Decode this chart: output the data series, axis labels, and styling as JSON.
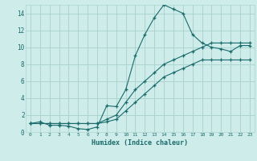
{
  "title": "",
  "xlabel": "Humidex (Indice chaleur)",
  "ylabel": "",
  "bg_color": "#ceecea",
  "grid_color": "#aed4d0",
  "line_color": "#1a6b6b",
  "xlim": [
    -0.5,
    23.5
  ],
  "ylim": [
    0,
    15
  ],
  "xticks": [
    0,
    1,
    2,
    3,
    4,
    5,
    6,
    7,
    8,
    9,
    10,
    11,
    12,
    13,
    14,
    15,
    16,
    17,
    18,
    19,
    20,
    21,
    22,
    23
  ],
  "yticks": [
    0,
    2,
    4,
    6,
    8,
    10,
    12,
    14
  ],
  "series1_x": [
    0,
    1,
    2,
    3,
    4,
    5,
    6,
    7,
    8,
    9,
    10,
    11,
    12,
    13,
    14,
    15,
    16,
    17,
    18,
    19,
    20,
    21,
    22,
    23
  ],
  "series1_y": [
    1.0,
    1.2,
    0.8,
    0.8,
    0.7,
    0.4,
    0.3,
    0.6,
    3.1,
    3.0,
    5.0,
    9.0,
    11.5,
    13.5,
    15.0,
    14.5,
    14.0,
    11.5,
    10.5,
    10.0,
    9.8,
    9.5,
    10.2,
    10.2
  ],
  "series2_x": [
    0,
    1,
    2,
    3,
    4,
    5,
    6,
    7,
    8,
    9,
    10,
    11,
    12,
    13,
    14,
    15,
    16,
    17,
    18,
    19,
    20,
    21,
    22,
    23
  ],
  "series2_y": [
    1.0,
    1.0,
    1.0,
    1.0,
    1.0,
    1.0,
    1.0,
    1.0,
    1.5,
    2.0,
    3.5,
    5.0,
    6.0,
    7.0,
    8.0,
    8.5,
    9.0,
    9.5,
    10.0,
    10.5,
    10.5,
    10.5,
    10.5,
    10.5
  ],
  "series3_x": [
    0,
    1,
    2,
    3,
    4,
    5,
    6,
    7,
    8,
    9,
    10,
    11,
    12,
    13,
    14,
    15,
    16,
    17,
    18,
    19,
    20,
    21,
    22,
    23
  ],
  "series3_y": [
    1.0,
    1.0,
    1.0,
    1.0,
    1.0,
    1.0,
    1.0,
    1.0,
    1.2,
    1.5,
    2.5,
    3.5,
    4.5,
    5.5,
    6.5,
    7.0,
    7.5,
    8.0,
    8.5,
    8.5,
    8.5,
    8.5,
    8.5,
    8.5
  ]
}
